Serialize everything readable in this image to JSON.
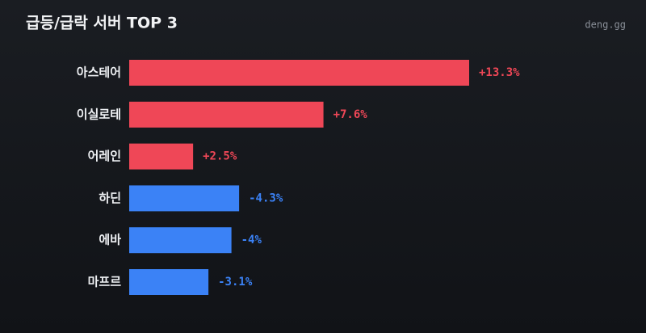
{
  "chart_data": {
    "type": "bar",
    "orientation": "horizontal",
    "title": "급등/급락 서버 TOP 3",
    "watermark": "deng.gg",
    "categories": [
      "아스테어",
      "이실로테",
      "어레인",
      "하딘",
      "에바",
      "마프르"
    ],
    "values": [
      13.3,
      7.6,
      2.5,
      -4.3,
      -4,
      -3.1
    ],
    "value_labels": [
      "+13.3%",
      "+7.6%",
      "+2.5%",
      "-4.3%",
      "-4%",
      "-3.1%"
    ],
    "positive_color": "#ef4757",
    "negative_color": "#3b82f6"
  }
}
